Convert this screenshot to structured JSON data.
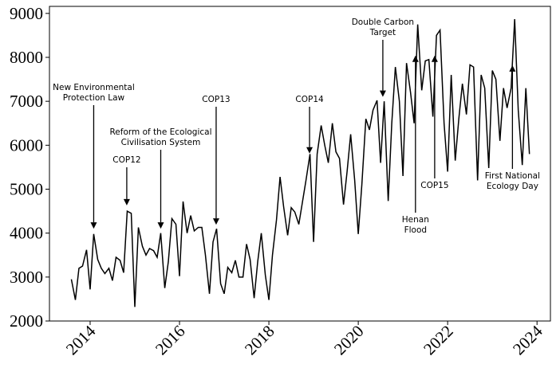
{
  "chart_data": {
    "type": "line",
    "x": [
      2013.58,
      2013.67,
      2013.75,
      2013.83,
      2013.92,
      2014.0,
      2014.08,
      2014.17,
      2014.25,
      2014.33,
      2014.42,
      2014.5,
      2014.58,
      2014.67,
      2014.75,
      2014.83,
      2014.92,
      2015.0,
      2015.08,
      2015.17,
      2015.25,
      2015.33,
      2015.42,
      2015.5,
      2015.58,
      2015.67,
      2015.75,
      2015.83,
      2015.92,
      2016.0,
      2016.08,
      2016.17,
      2016.25,
      2016.33,
      2016.42,
      2016.5,
      2016.58,
      2016.67,
      2016.75,
      2016.83,
      2016.92,
      2017.0,
      2017.08,
      2017.17,
      2017.25,
      2017.33,
      2017.42,
      2017.5,
      2017.58,
      2017.67,
      2017.75,
      2017.83,
      2017.92,
      2018.0,
      2018.08,
      2018.17,
      2018.25,
      2018.33,
      2018.42,
      2018.5,
      2018.58,
      2018.67,
      2018.75,
      2018.83,
      2018.92,
      2019.0,
      2019.08,
      2019.17,
      2019.25,
      2019.33,
      2019.42,
      2019.5,
      2019.58,
      2019.67,
      2019.75,
      2019.83,
      2019.92,
      2020.0,
      2020.08,
      2020.17,
      2020.25,
      2020.33,
      2020.42,
      2020.5,
      2020.58,
      2020.67,
      2020.75,
      2020.83,
      2020.92,
      2021.0,
      2021.08,
      2021.17,
      2021.25,
      2021.33,
      2021.42,
      2021.5,
      2021.58,
      2021.67,
      2021.75,
      2021.83,
      2021.92,
      2022.0,
      2022.08,
      2022.17,
      2022.25,
      2022.33,
      2022.42,
      2022.5,
      2022.58,
      2022.67,
      2022.75,
      2022.83,
      2022.92,
      2023.0,
      2023.08,
      2023.17,
      2023.25,
      2023.33,
      2023.42,
      2023.5,
      2023.58,
      2023.67,
      2023.75,
      2023.83
    ],
    "series": [
      {
        "color": "#000000",
        "values": [
          2950,
          2480,
          3200,
          3250,
          3620,
          2720,
          3980,
          3400,
          3200,
          3080,
          3200,
          2920,
          3450,
          3380,
          3100,
          4500,
          4450,
          2320,
          4130,
          3700,
          3500,
          3650,
          3600,
          3450,
          4000,
          2750,
          3350,
          4330,
          4200,
          3020,
          4720,
          4000,
          4400,
          4050,
          4130,
          4130,
          3500,
          2620,
          3800,
          4100,
          2850,
          2620,
          3220,
          3100,
          3380,
          3000,
          3000,
          3750,
          3400,
          2520,
          3350,
          4000,
          3050,
          2480,
          3500,
          4300,
          5280,
          4600,
          3950,
          4580,
          4480,
          4200,
          4700,
          5200,
          5800,
          3800,
          5800,
          6450,
          6000,
          5600,
          6500,
          5850,
          5700,
          4650,
          5400,
          6250,
          5200,
          3980,
          5100,
          6600,
          6350,
          6800,
          7020,
          5600,
          7000,
          4730,
          6500,
          7780,
          7000,
          5300,
          7870,
          7200,
          6500,
          8750,
          7250,
          7920,
          7950,
          6650,
          8500,
          8620,
          6500,
          5400,
          7600,
          5650,
          6600,
          7400,
          6700,
          7830,
          7780,
          5200,
          7600,
          7300,
          5480,
          7700,
          7500,
          6100,
          7300,
          6850,
          7300,
          8870,
          6800,
          5550,
          7300,
          5800
        ]
      }
    ],
    "xlim": [
      2013.09,
      2024.3
    ],
    "xticks": [
      2014,
      2016,
      2018,
      2020,
      2022,
      2024
    ],
    "ylim": [
      2000,
      9160
    ],
    "yticks": [
      2000,
      3000,
      4000,
      5000,
      6000,
      7000,
      8000,
      9000
    ],
    "annotations": [
      {
        "text": [
          "New Environmental",
          "Protection Law"
        ],
        "x": 2014.08,
        "y": 4100
      },
      {
        "text": [
          "COP12"
        ],
        "x": 2014.82,
        "y": 4630
      },
      {
        "text": [
          "Reform of the Ecological",
          "Civilisation System"
        ],
        "x": 2015.58,
        "y": 4100
      },
      {
        "text": [
          "COP13"
        ],
        "x": 2016.82,
        "y": 4190
      },
      {
        "text": [
          "COP14"
        ],
        "x": 2018.91,
        "y": 5810
      },
      {
        "text": [
          "Double Carbon",
          "Target"
        ],
        "x": 2020.55,
        "y": 7100
      },
      {
        "text": [
          "Henan",
          "Flood"
        ],
        "x": 2021.28,
        "y": 8040
      },
      {
        "text": [
          "COP15"
        ],
        "x": 2021.71,
        "y": 8040
      },
      {
        "text": [
          "First National",
          "Ecology Day"
        ],
        "x": 2023.45,
        "y": 7820
      }
    ]
  }
}
